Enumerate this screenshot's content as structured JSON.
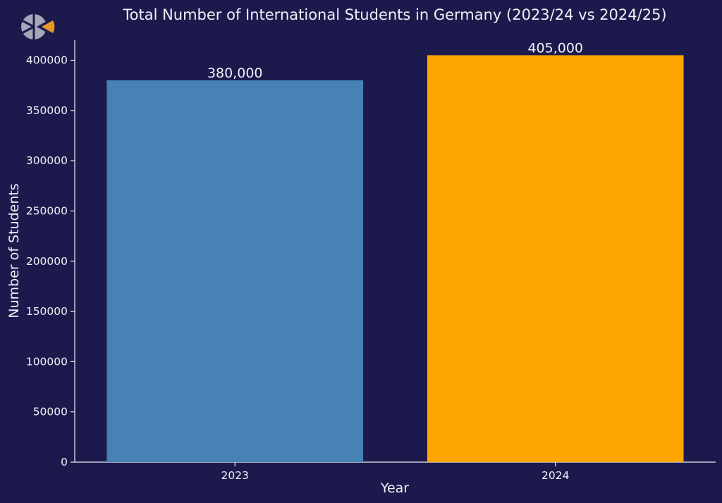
{
  "colors": {
    "background": "#1c1a4d",
    "text": "#f0f0f5",
    "axis": "#f0f0f5",
    "logo_gray": "#a6a6b8",
    "logo_accent": "#e8962a"
  },
  "logo": {
    "icon": "logo-icon"
  },
  "chart_data": {
    "type": "bar",
    "title": "Total Number of International Students in Germany (2023/24 vs 2024/25)",
    "xlabel": "Year",
    "ylabel": "Number of Students",
    "categories": [
      "2023",
      "2024"
    ],
    "values": [
      380000,
      405000
    ],
    "data_labels": [
      "380,000",
      "405,000"
    ],
    "bar_colors": [
      "#4682b4",
      "#ffa500"
    ],
    "ylim": [
      0,
      420000
    ],
    "yticks": [
      0,
      50000,
      100000,
      150000,
      200000,
      250000,
      300000,
      350000,
      400000
    ],
    "ytick_labels": [
      "0",
      "50000",
      "100000",
      "150000",
      "200000",
      "250000",
      "300000",
      "350000",
      "400000"
    ],
    "grid": false,
    "legend": false
  }
}
